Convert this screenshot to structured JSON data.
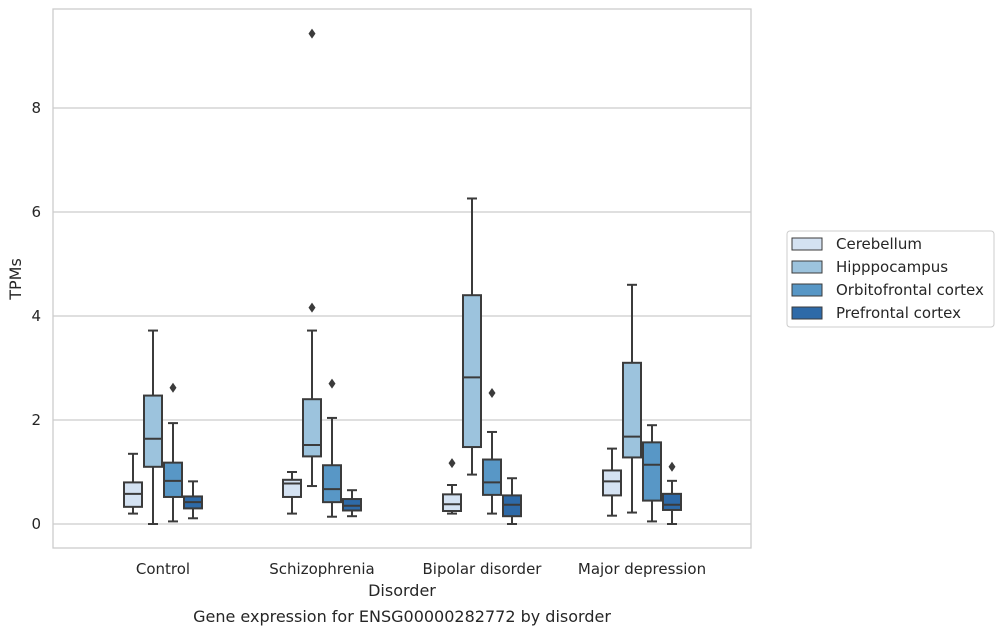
{
  "chart_data": {
    "type": "boxplot",
    "title": "",
    "caption": "Gene expression for ENSG00000282772 by disorder",
    "xlabel": "Disorder",
    "ylabel": "TPMs",
    "ylim": [
      -0.45,
      9.8
    ],
    "yticks": [
      0,
      2,
      4,
      6,
      8
    ],
    "grid": true,
    "legend_position": "right",
    "categories": [
      "Control",
      "Schizophrenia",
      "Bipolar disorder",
      "Major depression"
    ],
    "series": [
      {
        "name": "Cerebellum",
        "color": "#d4e2f2",
        "boxes": [
          {
            "whisker_low": 0.2,
            "q1": 0.33,
            "median": 0.58,
            "q3": 0.8,
            "whisker_high": 1.35,
            "outliers": []
          },
          {
            "whisker_low": 0.2,
            "q1": 0.52,
            "median": 0.78,
            "q3": 0.85,
            "whisker_high": 1.0,
            "outliers": []
          },
          {
            "whisker_low": 0.2,
            "q1": 0.25,
            "median": 0.38,
            "q3": 0.57,
            "whisker_high": 0.75,
            "outliers": [
              1.17
            ]
          },
          {
            "whisker_low": 0.16,
            "q1": 0.55,
            "median": 0.82,
            "q3": 1.03,
            "whisker_high": 1.45,
            "outliers": []
          }
        ]
      },
      {
        "name": "Hipppocampus",
        "color": "#9cc3dd",
        "boxes": [
          {
            "whisker_low": 0.0,
            "q1": 1.1,
            "median": 1.64,
            "q3": 2.47,
            "whisker_high": 3.72,
            "outliers": []
          },
          {
            "whisker_low": 0.73,
            "q1": 1.3,
            "median": 1.52,
            "q3": 2.4,
            "whisker_high": 3.72,
            "outliers": [
              4.16,
              9.43
            ]
          },
          {
            "whisker_low": 0.95,
            "q1": 1.48,
            "median": 2.82,
            "q3": 4.4,
            "whisker_high": 6.26,
            "outliers": []
          },
          {
            "whisker_low": 0.22,
            "q1": 1.28,
            "median": 1.68,
            "q3": 3.1,
            "whisker_high": 4.6,
            "outliers": []
          }
        ]
      },
      {
        "name": "Orbitofrontal cortex",
        "color": "#5897c6",
        "boxes": [
          {
            "whisker_low": 0.05,
            "q1": 0.52,
            "median": 0.83,
            "q3": 1.18,
            "whisker_high": 1.94,
            "outliers": [
              2.62
            ]
          },
          {
            "whisker_low": 0.14,
            "q1": 0.42,
            "median": 0.67,
            "q3": 1.13,
            "whisker_high": 2.04,
            "outliers": [
              2.7
            ]
          },
          {
            "whisker_low": 0.2,
            "q1": 0.56,
            "median": 0.8,
            "q3": 1.24,
            "whisker_high": 1.77,
            "outliers": [
              2.52
            ]
          },
          {
            "whisker_low": 0.05,
            "q1": 0.45,
            "median": 1.14,
            "q3": 1.57,
            "whisker_high": 1.9,
            "outliers": []
          }
        ]
      },
      {
        "name": "Prefrontal cortex",
        "color": "#2e6aa8",
        "boxes": [
          {
            "whisker_low": 0.11,
            "q1": 0.3,
            "median": 0.42,
            "q3": 0.53,
            "whisker_high": 0.82,
            "outliers": []
          },
          {
            "whisker_low": 0.15,
            "q1": 0.26,
            "median": 0.35,
            "q3": 0.48,
            "whisker_high": 0.65,
            "outliers": []
          },
          {
            "whisker_low": 0.0,
            "q1": 0.15,
            "median": 0.37,
            "q3": 0.55,
            "whisker_high": 0.88,
            "outliers": []
          },
          {
            "whisker_low": 0.0,
            "q1": 0.27,
            "median": 0.37,
            "q3": 0.58,
            "whisker_high": 0.83,
            "outliers": [
              1.1
            ]
          }
        ]
      }
    ]
  }
}
